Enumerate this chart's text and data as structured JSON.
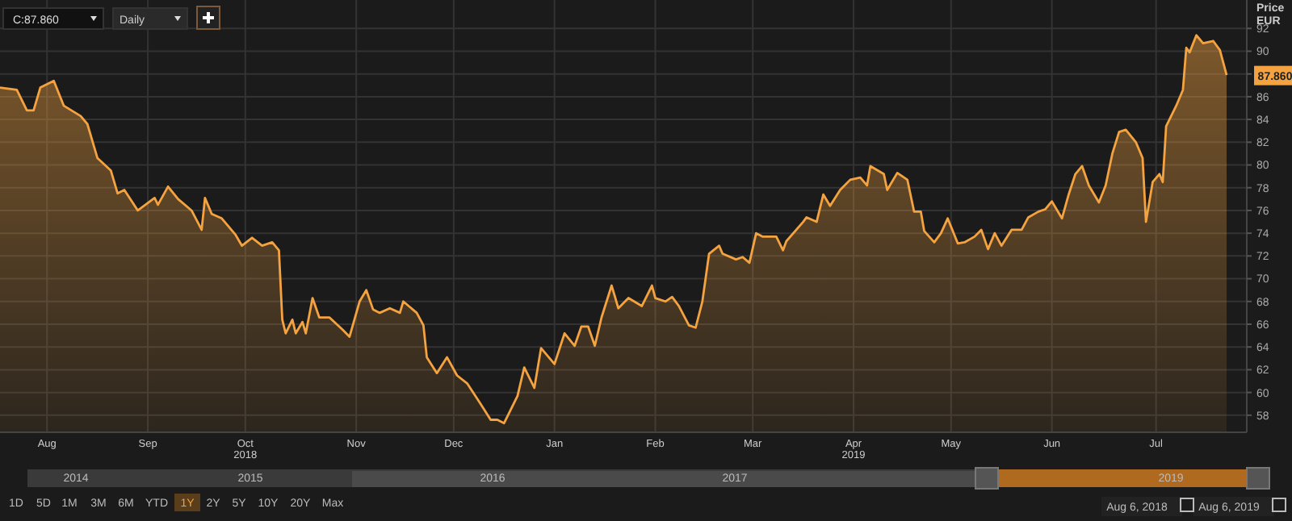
{
  "chart_data": {
    "type": "area",
    "ylabel": "Price\nEUR",
    "x": [
      "2018-08-06",
      "2018-08-11",
      "2018-08-14",
      "2018-08-16",
      "2018-08-18",
      "2018-08-22",
      "2018-08-25",
      "2018-08-30",
      "2018-09-01",
      "2018-09-04",
      "2018-09-08",
      "2018-09-10",
      "2018-09-12",
      "2018-09-16",
      "2018-09-21",
      "2018-09-22",
      "2018-09-25",
      "2018-09-28",
      "2018-10-02",
      "2018-10-05",
      "2018-10-06",
      "2018-10-08",
      "2018-10-11",
      "2018-10-15",
      "2018-10-17",
      "2018-10-20",
      "2018-10-23",
      "2018-10-26",
      "2018-10-28",
      "2018-10-29",
      "2018-10-30",
      "2018-11-01",
      "2018-11-02",
      "2018-11-04",
      "2018-11-05",
      "2018-11-07",
      "2018-11-09",
      "2018-11-12",
      "2018-11-16",
      "2018-11-18",
      "2018-11-21",
      "2018-11-23",
      "2018-11-25",
      "2018-11-27",
      "2018-11-30",
      "2018-12-03",
      "2018-12-04",
      "2018-12-08",
      "2018-12-10",
      "2018-12-11",
      "2018-12-14",
      "2018-12-17",
      "2018-12-20",
      "2018-12-23",
      "2018-12-27",
      "2018-12-30",
      "2019-01-01",
      "2019-01-03",
      "2019-01-07",
      "2019-01-09",
      "2019-01-12",
      "2019-01-14",
      "2019-01-18",
      "2019-01-21",
      "2019-01-24",
      "2019-01-26",
      "2019-01-28",
      "2019-01-30",
      "2019-02-01",
      "2019-02-04",
      "2019-02-06",
      "2019-02-09",
      "2019-02-13",
      "2019-02-16",
      "2019-02-17",
      "2019-02-20",
      "2019-02-22",
      "2019-02-24",
      "2019-02-27",
      "2019-03-01",
      "2019-03-03",
      "2019-03-05",
      "2019-03-08",
      "2019-03-09",
      "2019-03-13",
      "2019-03-15",
      "2019-03-17",
      "2019-03-19",
      "2019-03-21",
      "2019-03-25",
      "2019-03-27",
      "2019-03-28",
      "2019-04-02",
      "2019-04-03",
      "2019-04-06",
      "2019-04-08",
      "2019-04-10",
      "2019-04-13",
      "2019-04-16",
      "2019-04-19",
      "2019-04-21",
      "2019-04-22",
      "2019-04-26",
      "2019-04-27",
      "2019-04-30",
      "2019-05-03",
      "2019-05-05",
      "2019-05-07",
      "2019-05-08",
      "2019-05-11",
      "2019-05-13",
      "2019-05-15",
      "2019-05-18",
      "2019-05-20",
      "2019-05-23",
      "2019-05-25",
      "2019-05-27",
      "2019-05-29",
      "2019-05-31",
      "2019-06-03",
      "2019-06-06",
      "2019-06-08",
      "2019-06-11",
      "2019-06-13",
      "2019-06-15",
      "2019-06-18",
      "2019-06-20",
      "2019-06-22",
      "2019-06-24",
      "2019-06-26",
      "2019-06-29",
      "2019-07-01",
      "2019-07-03",
      "2019-07-05",
      "2019-07-07",
      "2019-07-10",
      "2019-07-12",
      "2019-07-13",
      "2019-07-15",
      "2019-07-17",
      "2019-07-18",
      "2019-07-19",
      "2019-07-22",
      "2019-07-24",
      "2019-07-25",
      "2019-07-26",
      "2019-07-28",
      "2019-07-30",
      "2019-08-02",
      "2019-08-04",
      "2019-08-06"
    ],
    "series": [
      {
        "color": "#f4a340",
        "values": [
          86.8,
          86.6,
          84.8,
          84.8,
          86.8,
          87.4,
          85.2,
          84.3,
          83.6,
          80.6,
          79.5,
          77.5,
          77.8,
          76.0,
          77.1,
          76.5,
          78.1,
          77.0,
          76.0,
          74.3,
          77.1,
          75.7,
          75.3,
          73.9,
          72.9,
          73.6,
          72.9,
          73.2,
          72.5,
          66.4,
          65.2,
          66.4,
          65.2,
          66.2,
          65.2,
          68.3,
          66.6,
          66.6,
          65.5,
          64.9,
          68.0,
          69.0,
          67.3,
          67.0,
          67.4,
          67.0,
          68.0,
          67.0,
          65.9,
          63.1,
          61.7,
          63.1,
          61.5,
          60.8,
          59.0,
          57.6,
          57.6,
          57.3,
          59.7,
          62.2,
          60.4,
          63.9,
          62.5,
          65.2,
          64.1,
          65.8,
          65.8,
          64.1,
          66.6,
          69.4,
          67.4,
          68.3,
          67.6,
          69.4,
          68.3,
          68.0,
          68.4,
          67.6,
          65.9,
          65.7,
          68.0,
          72.2,
          72.9,
          72.2,
          71.7,
          71.9,
          71.4,
          74.0,
          73.7,
          73.7,
          72.5,
          73.3,
          75.0,
          75.4,
          75.0,
          77.4,
          76.4,
          77.8,
          78.7,
          78.9,
          78.2,
          79.9,
          79.2,
          77.8,
          79.3,
          78.7,
          75.9,
          75.9,
          74.2,
          73.2,
          74.0,
          75.3,
          73.1,
          73.2,
          73.7,
          74.3,
          72.6,
          74.0,
          72.9,
          74.3,
          74.3,
          75.4,
          75.9,
          76.1,
          76.8,
          75.3,
          77.4,
          79.2,
          79.9,
          78.2,
          76.7,
          78.2,
          81.0,
          82.9,
          83.1,
          82.0,
          80.6,
          75.0,
          78.5,
          79.2,
          78.5,
          83.4,
          85.2,
          86.6,
          90.3,
          89.9,
          91.4,
          90.7,
          90.9,
          90.1,
          87.9
        ]
      }
    ],
    "xlim": [
      "2018-08-06",
      "2019-08-12"
    ],
    "xticks": [
      {
        "value": "2018-08-20",
        "label": "Aug"
      },
      {
        "value": "2018-09-19",
        "label": "Sep"
      },
      {
        "value": "2018-10-18",
        "label": "Oct\n2018"
      },
      {
        "value": "2018-11-20",
        "label": "Nov"
      },
      {
        "value": "2018-12-19",
        "label": "Dec"
      },
      {
        "value": "2019-01-18",
        "label": "Jan"
      },
      {
        "value": "2019-02-17",
        "label": "Feb"
      },
      {
        "value": "2019-03-18",
        "label": "Mar"
      },
      {
        "value": "2019-04-17",
        "label": "Apr\n2019"
      },
      {
        "value": "2019-05-16",
        "label": "May"
      },
      {
        "value": "2019-06-15",
        "label": "Jun"
      },
      {
        "value": "2019-07-16",
        "label": "Jul"
      }
    ],
    "ylim": [
      56.5,
      94.5
    ],
    "yticks": [
      58,
      60,
      62,
      64,
      66,
      68,
      70,
      72,
      74,
      76,
      78,
      80,
      82,
      84,
      86,
      {
        "value": 88,
        "label": null
      },
      90,
      92
    ],
    "grid": true,
    "annotations": [
      {
        "text": "87.860",
        "x": "2019-08-06",
        "y": 87.86
      },
      "C:87.860",
      "Daily",
      "1D",
      "5D",
      "1M",
      "3M",
      "6M",
      "YTD",
      "1Y",
      "2Y",
      "5Y",
      "10Y",
      "20Y",
      "Max",
      "2014",
      "2015",
      "2016",
      "2017",
      "2019",
      "Aug 6, 2018",
      "Aug 6, 2019"
    ]
  }
}
